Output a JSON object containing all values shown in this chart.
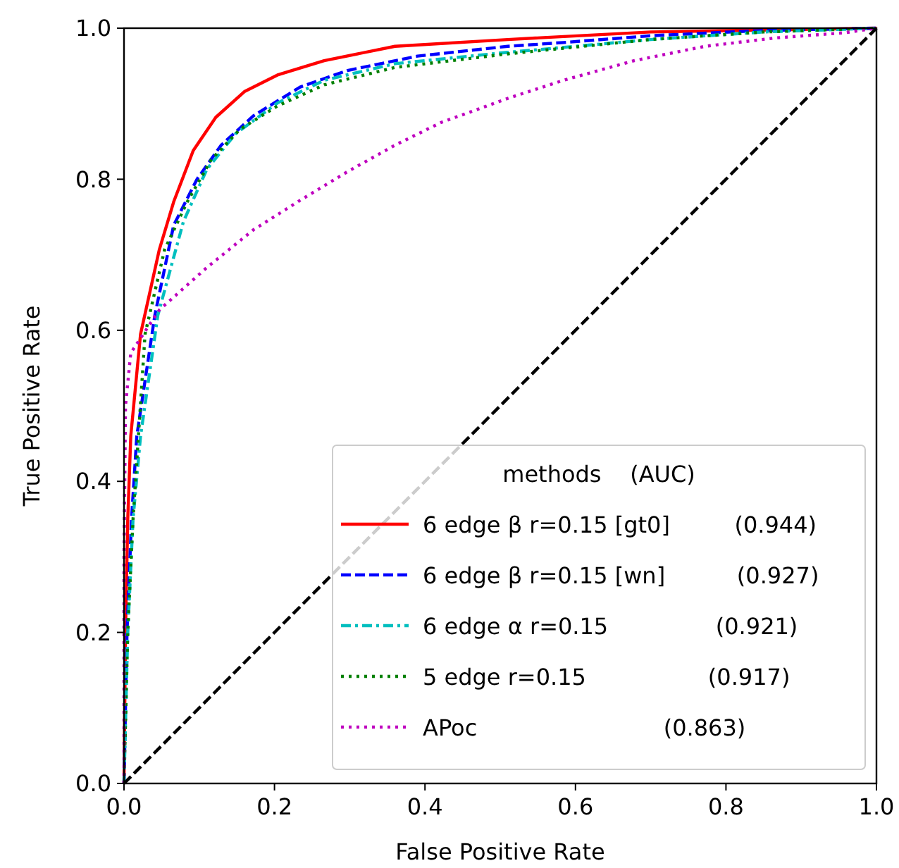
{
  "chart_data": {
    "type": "line",
    "xlabel": "False Positive Rate",
    "ylabel": "True Positive Rate",
    "xlim": [
      0,
      1
    ],
    "ylim": [
      0,
      1
    ],
    "xticks": [
      {
        "value": 0,
        "label": "0.0"
      },
      0.2,
      0.4,
      0.6,
      0.8,
      {
        "value": 1,
        "label": "1.0"
      }
    ],
    "yticks": [
      {
        "value": 0,
        "label": "0.0"
      },
      0.2,
      0.4,
      0.6,
      0.8,
      {
        "value": 1,
        "label": "1.0"
      }
    ],
    "legend": "bottom right",
    "legend_title": "methods    (AUC)",
    "series": [
      {
        "name": "6 edge β r=0.15 [gt0] (0.944)",
        "color": "#ff0000",
        "line_style": "solid",
        "x": [
          0,
          0.002,
          0.005,
          0.009,
          0.022,
          0.047,
          0.066,
          0.092,
          0.122,
          0.16,
          0.204,
          0.266,
          0.36,
          0.51,
          0.7,
          1
        ],
        "values": [
          0,
          0.2,
          0.35,
          0.46,
          0.595,
          0.707,
          0.77,
          0.838,
          0.882,
          0.916,
          0.938,
          0.957,
          0.976,
          0.985,
          0.995,
          1
        ]
      },
      {
        "name": "6 edge β r=0.15 [wn] (0.927)",
        "color": "#0000ff",
        "line_style": "dashed",
        "x": [
          0,
          0.004,
          0.01,
          0.017,
          0.041,
          0.066,
          0.097,
          0.129,
          0.172,
          0.234,
          0.297,
          0.39,
          0.51,
          0.584,
          0.7,
          0.85,
          1
        ],
        "values": [
          0,
          0.2,
          0.35,
          0.46,
          0.62,
          0.739,
          0.8,
          0.845,
          0.884,
          0.922,
          0.944,
          0.963,
          0.976,
          0.981,
          0.99,
          0.997,
          1
        ]
      },
      {
        "name": "6 edge α r=0.15 (0.921)",
        "color": "#00bfbf",
        "line_style": "dashdot",
        "x": [
          0,
          0.005,
          0.012,
          0.022,
          0.045,
          0.079,
          0.11,
          0.148,
          0.204,
          0.266,
          0.36,
          0.51,
          0.6,
          0.7,
          0.85,
          1
        ],
        "values": [
          0,
          0.2,
          0.35,
          0.46,
          0.62,
          0.744,
          0.813,
          0.86,
          0.901,
          0.931,
          0.953,
          0.968,
          0.976,
          0.985,
          0.995,
          1
        ]
      },
      {
        "name": "5 edge r=0.15 (0.917)",
        "color": "#008000",
        "line_style": "dotted",
        "x": [
          0,
          0.005,
          0.012,
          0.028,
          0.054,
          0.084,
          0.116,
          0.154,
          0.204,
          0.266,
          0.36,
          0.51,
          0.6,
          0.7,
          0.85,
          1
        ],
        "values": [
          0,
          0.2,
          0.35,
          0.595,
          0.707,
          0.77,
          0.826,
          0.866,
          0.897,
          0.925,
          0.948,
          0.966,
          0.975,
          0.985,
          0.995,
          1
        ]
      },
      {
        "name": "APoc (0.863)",
        "color": "#bf00bf",
        "line_style": "dotted",
        "x": [
          0,
          0,
          0.002,
          0.009,
          0.047,
          0.11,
          0.172,
          0.234,
          0.297,
          0.36,
          0.421,
          0.51,
          0.584,
          0.678,
          0.772,
          0.865,
          0.958,
          1
        ],
        "values": [
          0,
          0.3,
          0.5,
          0.57,
          0.627,
          0.683,
          0.733,
          0.772,
          0.81,
          0.845,
          0.875,
          0.907,
          0.931,
          0.957,
          0.976,
          0.987,
          0.994,
          1
        ]
      },
      {
        "color": "#000000",
        "line_style": "dashed",
        "x": [
          0,
          1
        ],
        "values": [
          0,
          1
        ]
      }
    ]
  }
}
